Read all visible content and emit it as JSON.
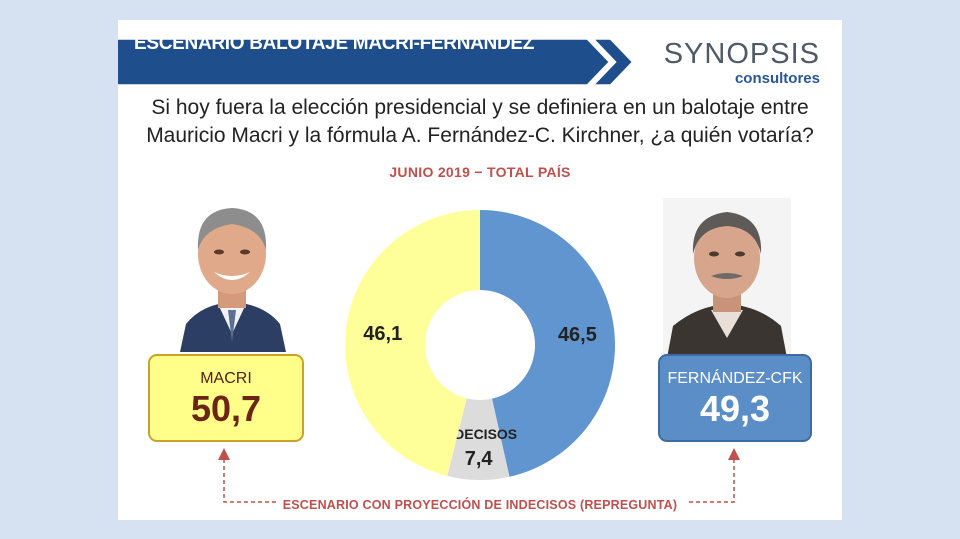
{
  "header": {
    "title": "ESCENARIO BALOTAJE MACRI-FERNÁNDEZ",
    "logo_main": "SYNOPSIS",
    "logo_sub": "consultores"
  },
  "question": {
    "line1": "Si hoy fuera la elección presidencial y se definiera en un balotaje entre",
    "line2": "Mauricio Macri y la fórmula A. Fernández-C. Kirchner, ¿a quién votaría?"
  },
  "subtitle": "JUNIO 2019 − TOTAL PAÍS",
  "candidates": {
    "macri": {
      "name": "MACRI",
      "projected": "50,7"
    },
    "fernandez": {
      "name": "FERNÁNDEZ-CFK",
      "projected": "49,3"
    }
  },
  "footnote": "ESCENARIO CON PROYECCIÓN DE INDECISOS (REPREGUNTA)",
  "colors": {
    "banner": "#1f4e8c",
    "macri": "#ffff99",
    "fernandez": "#6195cf",
    "indecisos": "#dcdcdc",
    "accent": "#c0504d"
  },
  "chart_data": {
    "type": "pie",
    "donut": true,
    "title": "JUNIO 2019 − TOTAL PAÍS",
    "slices": [
      {
        "name": "",
        "value": 46.5,
        "label": "46,5",
        "color": "#6195cf"
      },
      {
        "name": "INDECISOS",
        "value": 7.4,
        "label": "7,4",
        "color": "#dcdcdc"
      },
      {
        "name": "",
        "value": 46.1,
        "label": "46,1",
        "color": "#ffff99"
      }
    ]
  }
}
